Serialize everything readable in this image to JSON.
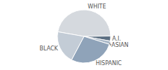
{
  "chart_data": {
    "type": "pie",
    "categories": [
      "WHITE",
      "A.I.",
      "ASIAN",
      "HISPANIC",
      "BLACK"
    ],
    "values": [
      47,
      3,
      2,
      28,
      20
    ],
    "colors": [
      "#d5d9de",
      "#5c6f82",
      "#a9b8c8",
      "#8fa3b9",
      "#c3ccd6"
    ]
  }
}
